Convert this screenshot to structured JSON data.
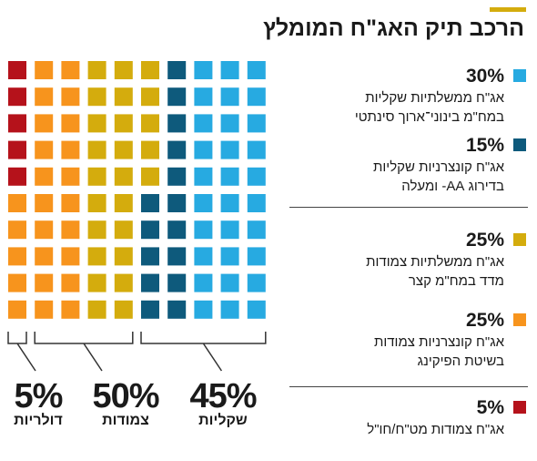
{
  "chart_data": {
    "type": "waffle",
    "title": "הרכב תיק האג\"ח המומלץ",
    "grid": {
      "rows": 10,
      "cols": 10,
      "units": "percent"
    },
    "colors": {
      "orange": "#f7941d",
      "gold": "#d4ac0d",
      "navy": "#0e5a7c",
      "cyan": "#27aae1",
      "red": "#b5121b"
    },
    "columns": [
      [
        "red-5",
        "red-5",
        "red-5",
        "red-5",
        "red-5",
        "orange-25",
        "orange-25",
        "orange-25",
        "orange-25",
        "orange-25"
      ],
      [
        "orange-25",
        "orange-25",
        "orange-25",
        "orange-25",
        "orange-25",
        "orange-25",
        "orange-25",
        "orange-25",
        "orange-25",
        "orange-25"
      ],
      [
        "orange-25",
        "orange-25",
        "orange-25",
        "orange-25",
        "orange-25",
        "orange-25",
        "orange-25",
        "orange-25",
        "orange-25",
        "orange-25"
      ],
      [
        "gold-25",
        "gold-25",
        "gold-25",
        "gold-25",
        "gold-25",
        "gold-25",
        "gold-25",
        "gold-25",
        "gold-25",
        "gold-25"
      ],
      [
        "gold-25",
        "gold-25",
        "gold-25",
        "gold-25",
        "gold-25",
        "gold-25",
        "gold-25",
        "gold-25",
        "gold-25",
        "gold-25"
      ],
      [
        "gold-25",
        "gold-25",
        "gold-25",
        "gold-25",
        "gold-25",
        "navy-15",
        "navy-15",
        "navy-15",
        "navy-15",
        "navy-15"
      ],
      [
        "navy-15",
        "navy-15",
        "navy-15",
        "navy-15",
        "navy-15",
        "navy-15",
        "navy-15",
        "navy-15",
        "navy-15",
        "navy-15"
      ],
      [
        "cyan-30",
        "cyan-30",
        "cyan-30",
        "cyan-30",
        "cyan-30",
        "cyan-30",
        "cyan-30",
        "cyan-30",
        "cyan-30",
        "cyan-30"
      ],
      [
        "cyan-30",
        "cyan-30",
        "cyan-30",
        "cyan-30",
        "cyan-30",
        "cyan-30",
        "cyan-30",
        "cyan-30",
        "cyan-30",
        "cyan-30"
      ],
      [
        "cyan-30",
        "cyan-30",
        "cyan-30",
        "cyan-30",
        "cyan-30",
        "cyan-30",
        "cyan-30",
        "cyan-30",
        "cyan-30",
        "cyan-30"
      ]
    ],
    "legend": [
      {
        "color": "#27aae1",
        "value": "30%",
        "lines": [
          "אג\"ח ממשלתיות שקליות",
          "במח\"מ בינוני־ארוך סינתטי"
        ]
      },
      {
        "color": "#0e5a7c",
        "value": "15%",
        "lines": [
          "אג\"ח קונצרניות שקליות",
          "בדירוג AA- ומעלה"
        ]
      },
      {
        "color": "#d4ac0d",
        "value": "25%",
        "lines": [
          "אג\"ח ממשלתיות צמודות",
          "מדד במח\"מ קצר"
        ]
      },
      {
        "color": "#f7941d",
        "value": "25%",
        "lines": [
          "אג\"ח קונצרניות צמודות",
          "בשיטת הפיקינג"
        ]
      },
      {
        "color": "#b5121b",
        "value": "5%",
        "lines": [
          "אג\"ח צמודות מט\"ח/חו\"ל"
        ]
      }
    ],
    "summary": [
      {
        "value": "5%",
        "label": "דולריות",
        "col_start": 0,
        "col_end": 0
      },
      {
        "value": "50%",
        "label": "צמודות",
        "col_start": 1,
        "col_end": 4
      },
      {
        "value": "45%",
        "label": "שקליות",
        "col_start": 5,
        "col_end": 9
      }
    ]
  }
}
